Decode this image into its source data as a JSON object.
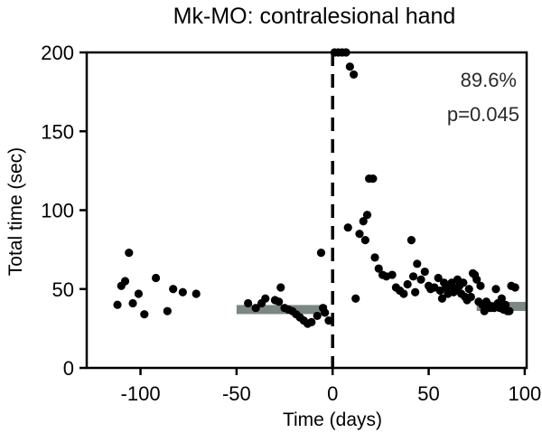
{
  "chart_data": {
    "type": "scatter",
    "title": "Mk-MO: contralesional hand",
    "xlabel": "Time (days)",
    "ylabel": "Total time (sec)",
    "xlim": [
      -128,
      101
    ],
    "ylim": [
      0,
      200
    ],
    "x_ticks": [
      -100,
      -50,
      0,
      50,
      100
    ],
    "y_ticks": [
      0,
      50,
      100,
      150,
      200
    ],
    "x_tick_labels": [
      "-100",
      "-50",
      "0",
      "50",
      "100"
    ],
    "y_tick_labels": [
      "0",
      "50",
      "100",
      "150",
      "200"
    ],
    "annotations": [
      "89.6%",
      "p=0.045"
    ],
    "event_line_x": 0,
    "baseline_bar": {
      "x_start": -50,
      "x_end": -3,
      "y": 37
    },
    "recovery_bar": {
      "x_start": 75,
      "x_end": 101,
      "y": 39
    },
    "points": [
      [
        -112,
        40
      ],
      [
        -110,
        52
      ],
      [
        -108,
        55
      ],
      [
        -106,
        73
      ],
      [
        -104,
        41
      ],
      [
        -101,
        47
      ],
      [
        -98,
        34
      ],
      [
        -92,
        57
      ],
      [
        -86,
        36
      ],
      [
        -83,
        50
      ],
      [
        -78,
        48
      ],
      [
        -71,
        47
      ],
      [
        -44,
        41
      ],
      [
        -40,
        38
      ],
      [
        -37,
        41
      ],
      [
        -35,
        44
      ],
      [
        -30,
        43
      ],
      [
        -28,
        42
      ],
      [
        -27,
        51
      ],
      [
        -25,
        38
      ],
      [
        -23,
        37
      ],
      [
        -21,
        36
      ],
      [
        -19,
        34
      ],
      [
        -17,
        32
      ],
      [
        -15,
        30
      ],
      [
        -13,
        28
      ],
      [
        -11,
        29
      ],
      [
        -8,
        33
      ],
      [
        -6,
        73
      ],
      [
        -5,
        38
      ],
      [
        -4,
        35
      ],
      [
        -2,
        30
      ],
      [
        1,
        200
      ],
      [
        3,
        200
      ],
      [
        5,
        200
      ],
      [
        7,
        200
      ],
      [
        9,
        191
      ],
      [
        11,
        186
      ],
      [
        8,
        89
      ],
      [
        12,
        44
      ],
      [
        14,
        85
      ],
      [
        16,
        93
      ],
      [
        17,
        81
      ],
      [
        18,
        97
      ],
      [
        19,
        120
      ],
      [
        21,
        120
      ],
      [
        22,
        70
      ],
      [
        24,
        63
      ],
      [
        26,
        59
      ],
      [
        28,
        58
      ],
      [
        31,
        59
      ],
      [
        33,
        51
      ],
      [
        35,
        49
      ],
      [
        37,
        47
      ],
      [
        39,
        53
      ],
      [
        41,
        81
      ],
      [
        42,
        58
      ],
      [
        43,
        48
      ],
      [
        44,
        66
      ],
      [
        46,
        56
      ],
      [
        48,
        61
      ],
      [
        50,
        52
      ],
      [
        51,
        50
      ],
      [
        53,
        51
      ],
      [
        55,
        57
      ],
      [
        56,
        49
      ],
      [
        57,
        44
      ],
      [
        58,
        54
      ],
      [
        59,
        51
      ],
      [
        60,
        47
      ],
      [
        61,
        52
      ],
      [
        62,
        54
      ],
      [
        63,
        48
      ],
      [
        64,
        50
      ],
      [
        65,
        56
      ],
      [
        66,
        52
      ],
      [
        67,
        47
      ],
      [
        68,
        54
      ],
      [
        69,
        45
      ],
      [
        70,
        43
      ],
      [
        71,
        50
      ],
      [
        72,
        45
      ],
      [
        73,
        60
      ],
      [
        74,
        59
      ],
      [
        75,
        56
      ],
      [
        76,
        42
      ],
      [
        77,
        52
      ],
      [
        78,
        40
      ],
      [
        79,
        36
      ],
      [
        80,
        42
      ],
      [
        81,
        40
      ],
      [
        82,
        38
      ],
      [
        83,
        39
      ],
      [
        84,
        38
      ],
      [
        85,
        50
      ],
      [
        86,
        41
      ],
      [
        87,
        38
      ],
      [
        88,
        44
      ],
      [
        89,
        37
      ],
      [
        90,
        40
      ],
      [
        91,
        36
      ],
      [
        92,
        36
      ],
      [
        93,
        52
      ],
      [
        95,
        51
      ]
    ]
  }
}
